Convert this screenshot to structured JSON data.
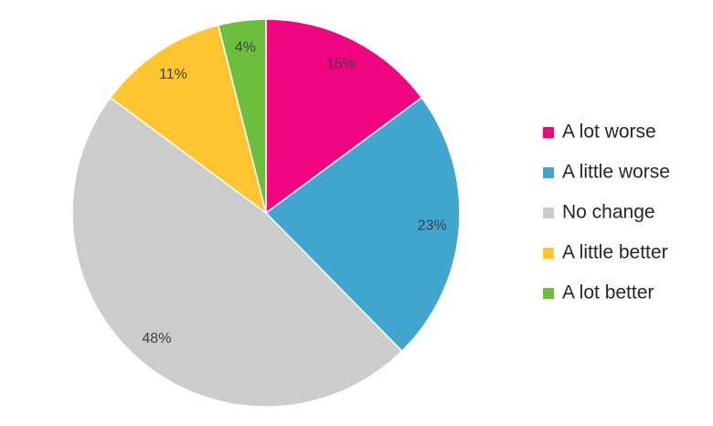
{
  "chart_data": {
    "type": "pie",
    "categories": [
      "A lot worse",
      "A little worse",
      "No change",
      "A little better",
      "A lot better"
    ],
    "values": [
      15,
      23,
      48,
      11,
      4
    ],
    "value_labels": [
      "15%",
      "23%",
      "48%",
      "11%",
      "4%"
    ],
    "colors": [
      "#f0047f",
      "#40a6cf",
      "#cccccc",
      "#fdc530",
      "#6cbf3e"
    ],
    "legend": "right"
  }
}
